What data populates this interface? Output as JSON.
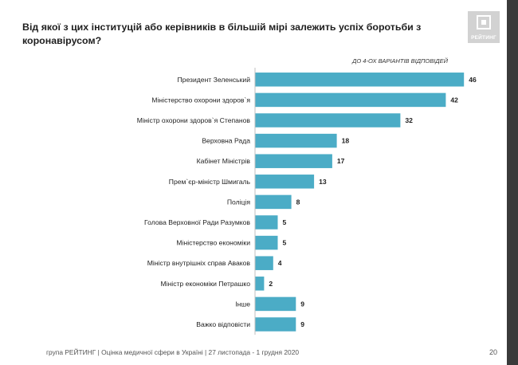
{
  "title": "Від якої з цих інституцій або керівників в більшій мірі залежить успіх боротьби з коронавірусом?",
  "note": "ДО 4-ОХ ВАРІАНТІВ ВІДПОВІДЕЙ",
  "logo_text": "РЕЙТИНГ",
  "footer": "група РЕЙТИНГ  |  Оцінка медичної сфери в Україні  |  27 листопада - 1 грудня 2020",
  "page_number": "20",
  "colors": {
    "bar": "#4bacc6",
    "axis": "#bfbfbf"
  },
  "chart_data": {
    "type": "bar",
    "orientation": "horizontal",
    "categories": [
      "Президент Зеленський",
      "Міністерство охорони здоров`я",
      "Міністр охорони здоров`я Степанов",
      "Верховна Рада",
      "Кабінет Міністрів",
      "Прем`єр-міністр Шмигаль",
      "Поліція",
      "Голова Верховної Ради Разумков",
      "Міністерство економіки",
      "Міністр внутрішніх справ Аваков",
      "Міністр економіки Петрашко",
      "Інше",
      "Важко відповісти"
    ],
    "values": [
      46,
      42,
      32,
      18,
      17,
      13,
      8,
      5,
      5,
      4,
      2,
      9,
      9
    ],
    "xlim": [
      0,
      50
    ],
    "xticks": [
      0,
      10,
      20,
      30,
      40,
      50
    ],
    "grid": false,
    "legend": "none"
  }
}
